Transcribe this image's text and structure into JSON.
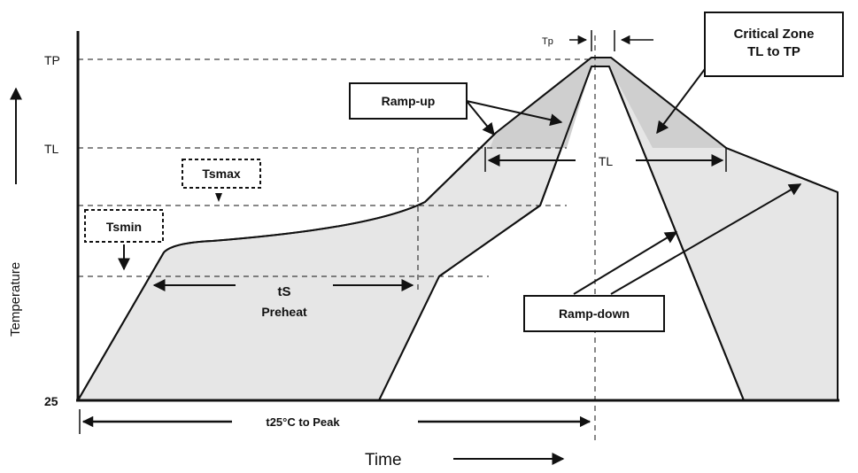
{
  "y_axis": {
    "title": "Temperature",
    "ticks": {
      "tp": "TP",
      "tl": "TL",
      "t25": "25"
    }
  },
  "x_axis": {
    "title": "Time"
  },
  "labels": {
    "tp_width": "Tp",
    "critical_zone_line1": "Critical Zone",
    "critical_zone_line2": "TL to TP",
    "ramp_up": "Ramp-up",
    "ramp_down": "Ramp-down",
    "tsmax": "Tsmax",
    "tsmin": "Tsmin",
    "ts": "tS",
    "preheat": "Preheat",
    "tl_duration": "TL",
    "t25_to_peak": "t25°C to Peak"
  },
  "colors": {
    "fill_light": "#e6e6e6",
    "fill_critical": "#cfcfcf",
    "stroke": "#111111"
  }
}
